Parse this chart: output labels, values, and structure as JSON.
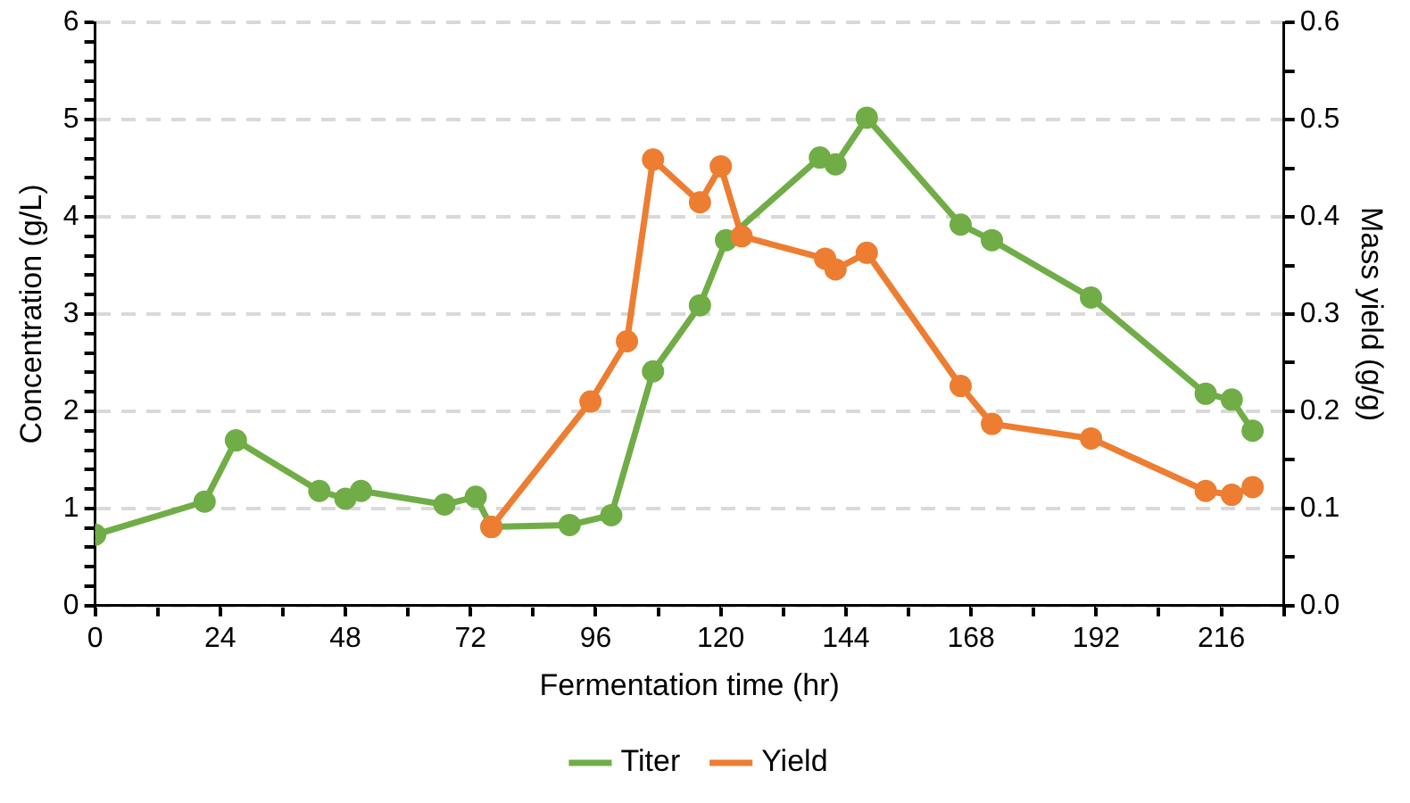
{
  "chart_data": {
    "type": "line",
    "xlabel": "Fermentation time (hr)",
    "ylabel": "Concentration (g/L)",
    "y2label": "Mass yield (g/g)",
    "xlim": [
      0,
      228
    ],
    "xticks": [
      0,
      {
        "value": 12,
        "label": null
      },
      24,
      {
        "value": 36,
        "label": null
      },
      48,
      {
        "value": 60,
        "label": null
      },
      72,
      {
        "value": 84,
        "label": null
      },
      96,
      {
        "value": 108,
        "label": null
      },
      120,
      {
        "value": 132,
        "label": null
      },
      144,
      {
        "value": 156,
        "label": null
      },
      168,
      {
        "value": 180,
        "label": null
      },
      192,
      {
        "value": 204,
        "label": null
      },
      216,
      {
        "value": 228,
        "label": null
      }
    ],
    "ylim": [
      0,
      6
    ],
    "yticks": [
      0,
      {
        "value": 0.2,
        "label": null
      },
      {
        "value": 0.4,
        "label": null
      },
      {
        "value": 0.6,
        "label": null
      },
      {
        "value": 0.8,
        "label": null
      },
      1,
      {
        "value": 1.2,
        "label": null
      },
      {
        "value": 1.4,
        "label": null
      },
      {
        "value": 1.6,
        "label": null
      },
      {
        "value": 1.8,
        "label": null
      },
      2,
      {
        "value": 2.2,
        "label": null
      },
      {
        "value": 2.4,
        "label": null
      },
      {
        "value": 2.6,
        "label": null
      },
      {
        "value": 2.8,
        "label": null
      },
      3,
      {
        "value": 3.2,
        "label": null
      },
      {
        "value": 3.4,
        "label": null
      },
      {
        "value": 3.6,
        "label": null
      },
      {
        "value": 3.8,
        "label": null
      },
      4,
      {
        "value": 4.2,
        "label": null
      },
      {
        "value": 4.4,
        "label": null
      },
      {
        "value": 4.6,
        "label": null
      },
      {
        "value": 4.8,
        "label": null
      },
      5,
      {
        "value": 5.2,
        "label": null
      },
      {
        "value": 5.4,
        "label": null
      },
      {
        "value": 5.6,
        "label": null
      },
      {
        "value": 5.8,
        "label": null
      },
      6
    ],
    "y2lim": [
      0,
      0.6
    ],
    "y2ticks": [
      {
        "value": 0,
        "label": "0.0"
      },
      {
        "value": 0.05,
        "label": null
      },
      {
        "value": 0.1,
        "label": "0.1"
      },
      {
        "value": 0.15,
        "label": null
      },
      {
        "value": 0.2,
        "label": "0.2"
      },
      {
        "value": 0.25,
        "label": null
      },
      {
        "value": 0.3,
        "label": "0.3"
      },
      {
        "value": 0.35,
        "label": null
      },
      {
        "value": 0.4,
        "label": "0.4"
      },
      {
        "value": 0.45,
        "label": null
      },
      {
        "value": 0.5,
        "label": "0.5"
      },
      {
        "value": 0.55,
        "label": null
      },
      {
        "value": 0.6,
        "label": "0.6"
      }
    ],
    "grid": "y",
    "legend": "bottom",
    "marker": "circle",
    "line_style": "solid",
    "series": [
      {
        "name": "Titer",
        "color": "#70ad47",
        "x": [
          0,
          21,
          27,
          43,
          48,
          51,
          67,
          73,
          76,
          91,
          99,
          107,
          116,
          121,
          139,
          142,
          148,
          166,
          172,
          191,
          213,
          218,
          222
        ],
        "values": [
          0.73,
          1.07,
          1.7,
          1.18,
          1.1,
          1.18,
          1.04,
          1.12,
          0.81,
          0.83,
          0.93,
          2.41,
          3.09,
          3.76,
          4.61,
          4.54,
          5.02,
          3.92,
          3.76,
          3.17,
          2.18,
          2.12,
          1.8
        ]
      },
      {
        "name": "Yield",
        "color": "#ed7d31",
        "axis": "y2",
        "x": [
          76,
          95,
          102,
          107,
          116,
          120,
          124,
          140,
          142,
          148,
          166,
          172,
          191,
          213,
          218,
          222
        ],
        "values": [
          0.081,
          0.21,
          0.272,
          0.459,
          0.415,
          0.452,
          0.38,
          0.357,
          0.346,
          0.363,
          0.226,
          0.187,
          0.172,
          0.118,
          0.114,
          0.122
        ]
      }
    ]
  }
}
